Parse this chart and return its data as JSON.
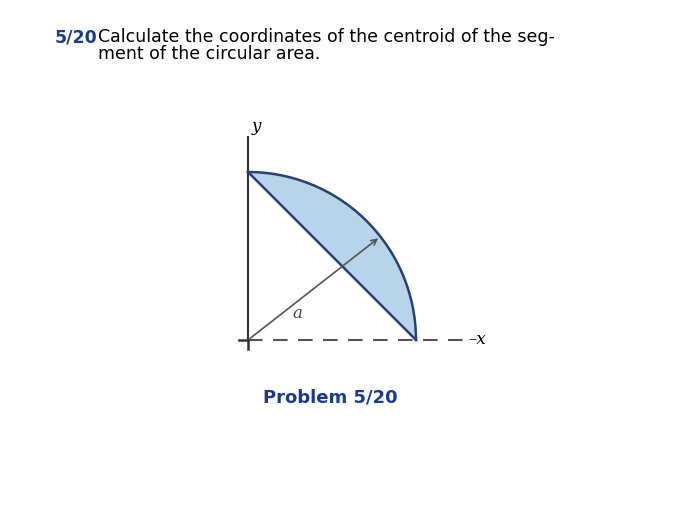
{
  "title_number": "5/20",
  "title_text_line1": "Calculate the coordinates of the centroid of the seg-",
  "title_text_line2": "ment of the circular area.",
  "problem_label": "Problem 5/20",
  "radius_label": "a",
  "x_label": "–x",
  "y_label": "y",
  "fill_color": "#b8d4e8",
  "fill_alpha": 1.0,
  "edge_color": "#2a4070",
  "dashed_color": "#555555",
  "solid_axis_color": "#333333",
  "title_number_color": "#1a3a8a",
  "title_text_color": "#000000",
  "problem_label_color": "#1a3a8a",
  "background_color": "#ffffff",
  "radius_line_color": "#888888",
  "arrow_color": "#555555",
  "corner_color": "#333333"
}
